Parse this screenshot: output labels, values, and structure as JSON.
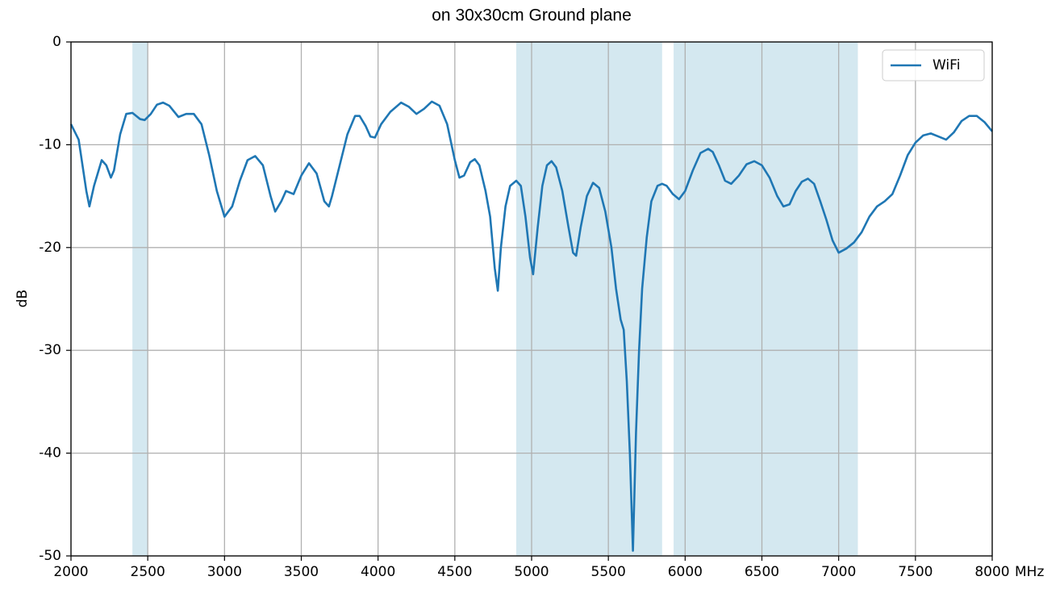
{
  "chart_data": {
    "type": "line",
    "title": "on 30x30cm Ground plane",
    "xlabel": "MHz",
    "ylabel": "dB",
    "x": [
      2000,
      2050,
      2100,
      2120,
      2150,
      2200,
      2230,
      2260,
      2280,
      2320,
      2360,
      2400,
      2450,
      2480,
      2520,
      2560,
      2600,
      2640,
      2700,
      2750,
      2800,
      2850,
      2900,
      2950,
      3000,
      3050,
      3100,
      3150,
      3200,
      3250,
      3300,
      3330,
      3370,
      3400,
      3450,
      3500,
      3550,
      3600,
      3650,
      3680,
      3700,
      3750,
      3800,
      3850,
      3880,
      3920,
      3950,
      3980,
      4020,
      4080,
      4150,
      4200,
      4250,
      4300,
      4350,
      4400,
      4450,
      4500,
      4530,
      4560,
      4600,
      4630,
      4660,
      4700,
      4730,
      4760,
      4780,
      4800,
      4830,
      4860,
      4900,
      4930,
      4960,
      4990,
      5010,
      5040,
      5070,
      5100,
      5130,
      5160,
      5200,
      5240,
      5270,
      5290,
      5320,
      5360,
      5400,
      5440,
      5480,
      5520,
      5550,
      5580,
      5600,
      5620,
      5640,
      5660,
      5680,
      5700,
      5720,
      5750,
      5780,
      5820,
      5850,
      5880,
      5920,
      5960,
      6000,
      6050,
      6100,
      6150,
      6180,
      6220,
      6260,
      6300,
      6350,
      6400,
      6450,
      6500,
      6550,
      6600,
      6640,
      6680,
      6720,
      6760,
      6800,
      6840,
      6880,
      6920,
      6960,
      7000,
      7050,
      7100,
      7150,
      7200,
      7250,
      7300,
      7350,
      7400,
      7450,
      7500,
      7550,
      7600,
      7650,
      7700,
      7750,
      7800,
      7850,
      7900,
      7950,
      8000
    ],
    "series": [
      {
        "name": "WiFi",
        "color": "#1f77b4",
        "values": [
          -8,
          -9.5,
          -14.5,
          -16,
          -14,
          -11.5,
          -12,
          -13.2,
          -12.5,
          -9,
          -7,
          -6.9,
          -7.5,
          -7.6,
          -7,
          -6.1,
          -5.9,
          -6.2,
          -7.3,
          -7,
          -7,
          -8,
          -11,
          -14.5,
          -17,
          -16,
          -13.5,
          -11.5,
          -11.1,
          -12,
          -15,
          -16.5,
          -15.5,
          -14.5,
          -14.8,
          -13,
          -11.8,
          -12.8,
          -15.5,
          -16,
          -15,
          -12,
          -9,
          -7.2,
          -7.2,
          -8.2,
          -9.2,
          -9.3,
          -8,
          -6.8,
          -5.9,
          -6.3,
          -7,
          -6.5,
          -5.8,
          -6.2,
          -8,
          -11.5,
          -13.2,
          -13,
          -11.7,
          -11.4,
          -12,
          -14.5,
          -17,
          -22,
          -24.2,
          -20,
          -16,
          -14,
          -13.5,
          -14,
          -17,
          -21,
          -22.6,
          -18,
          -14,
          -12,
          -11.6,
          -12.2,
          -14.5,
          -18,
          -20.5,
          -20.8,
          -18,
          -15,
          -13.7,
          -14.2,
          -16.5,
          -20,
          -24,
          -27,
          -28,
          -33,
          -40,
          -49.5,
          -38,
          -30,
          -24,
          -19,
          -15.5,
          -14,
          -13.8,
          -14,
          -14.8,
          -15.3,
          -14.5,
          -12.5,
          -10.8,
          -10.4,
          -10.7,
          -12,
          -13.5,
          -13.8,
          -13,
          -11.9,
          -11.6,
          -12,
          -13.2,
          -15,
          -16,
          -15.8,
          -14.5,
          -13.6,
          -13.3,
          -13.8,
          -15.5,
          -17.3,
          -19.3,
          -20.5,
          -20.1,
          -19.5,
          -18.5,
          -17,
          -16,
          -15.5,
          -14.8,
          -13,
          -11,
          -9.8,
          -9.1,
          -8.9,
          -9.2,
          -9.5,
          -8.8,
          -7.7,
          -7.2,
          -7.2,
          -7.8,
          -8.7
        ]
      }
    ],
    "xlim": [
      2000,
      8000
    ],
    "ylim": [
      -50,
      0
    ],
    "xticks": [
      2000,
      2500,
      3000,
      3500,
      4000,
      4500,
      5000,
      5500,
      6000,
      6500,
      7000,
      7500,
      8000
    ],
    "yticks": [
      0,
      -10,
      -20,
      -30,
      -40,
      -50
    ],
    "grid": true,
    "legend": "upper right",
    "spans": [
      [
        2400,
        2500
      ],
      [
        4900,
        5850
      ],
      [
        5925,
        7125
      ]
    ],
    "span_color": "#d4e8f0"
  }
}
